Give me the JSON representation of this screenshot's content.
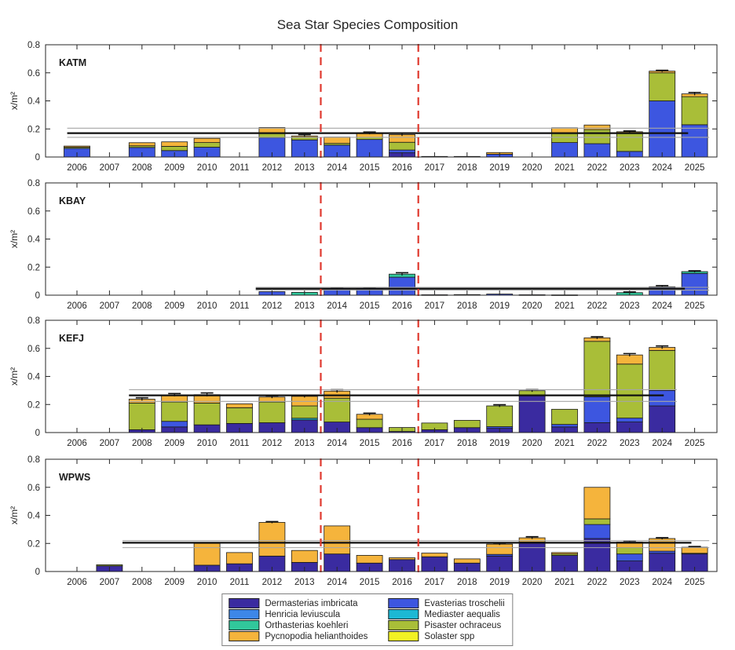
{
  "title": "Sea Star Species Composition",
  "ylabel": "x/m²",
  "chart_data": {
    "type": "bar",
    "stacked": true,
    "title": "Sea Star Species Composition",
    "ylabel": "x/m²",
    "ylim": [
      0,
      0.8
    ],
    "yticks": [
      0,
      0.2,
      0.4,
      0.6,
      0.8
    ],
    "years": [
      2006,
      2007,
      2008,
      2009,
      2010,
      2011,
      2012,
      2013,
      2014,
      2015,
      2016,
      2017,
      2018,
      2019,
      2020,
      2021,
      2022,
      2023,
      2024,
      2025
    ],
    "event_lines_x": [
      2013.5,
      2016.5
    ],
    "event_line_color": "#e03a2f",
    "species": [
      "Dermasterias imbricata",
      "Evasterias troschelii",
      "Henricia leviuscula",
      "Mediaster aequalis",
      "Orthasterias koehleri",
      "Pisaster ochraceus",
      "Pycnopodia helianthoides",
      "Solaster spp"
    ],
    "colors": [
      "#3a2ba0",
      "#3d56e0",
      "#3d87e8",
      "#1cb8d4",
      "#31c79b",
      "#a9be38",
      "#f5b43c",
      "#f2f224"
    ],
    "mean_line_color": "#111111",
    "ci_line_color": "#a6a6a6",
    "panels": [
      {
        "site": "KATM",
        "ref": {
          "mean": 0.17,
          "upper": 0.205,
          "lower": 0.14,
          "x0": 2005.7,
          "x1_black": 2024.8,
          "x1_gray": 2025.45
        },
        "bars": {
          "2006": [
            0,
            0.062,
            0,
            0,
            0,
            0.008,
            0.008,
            0
          ],
          "2008": [
            0,
            0.068,
            0,
            0,
            0,
            0.012,
            0.022,
            0
          ],
          "2009": [
            0,
            0.046,
            0,
            0,
            0,
            0.03,
            0.032,
            0
          ],
          "2010": [
            0,
            0.07,
            0,
            0,
            0,
            0.033,
            0.03,
            0
          ],
          "2012": [
            0,
            0.138,
            0,
            0,
            0,
            0.036,
            0.036,
            0
          ],
          "2013": [
            0,
            0.122,
            0,
            0,
            0,
            0.02,
            0.008,
            0
          ],
          "2014": [
            0,
            0.085,
            0,
            0,
            0,
            0.012,
            0.045,
            0
          ],
          "2015": [
            0,
            0.125,
            0,
            0,
            0,
            0.015,
            0.03,
            0
          ],
          "2016": [
            0.03,
            0.02,
            0,
            0,
            0,
            0.055,
            0.055,
            0
          ],
          "2017": [
            0.004,
            0,
            0,
            0,
            0,
            0,
            0,
            0
          ],
          "2018": [
            0.004,
            0,
            0,
            0,
            0,
            0,
            0,
            0
          ],
          "2019": [
            0,
            0.02,
            0,
            0,
            0,
            0,
            0.012,
            0
          ],
          "2021": [
            0,
            0.103,
            0,
            0,
            0,
            0.065,
            0.04,
            0
          ],
          "2022": [
            0,
            0.095,
            0,
            0,
            0,
            0.1,
            0.033,
            0
          ],
          "2023": [
            0,
            0.04,
            0,
            0,
            0,
            0.13,
            0.01,
            0
          ],
          "2024": [
            0,
            0.4,
            0,
            0,
            0,
            0.2,
            0.012,
            0
          ],
          "2025": [
            0,
            0.23,
            0,
            0,
            0,
            0.2,
            0.02,
            0
          ]
        },
        "errs": {
          "2013": 0.01,
          "2015": 0.008,
          "2016": 0.01,
          "2023": 0.006,
          "2024": 0.006,
          "2025": 0.01
        }
      },
      {
        "site": "KBAY",
        "ref": {
          "mean": 0.046,
          "upper": 0.056,
          "lower": 0.036,
          "x0": 2011.5,
          "x1_black": 2024.7,
          "x1_gray": 2025.45
        },
        "bars": {
          "2012": [
            0,
            0.025,
            0,
            0,
            0,
            0,
            0,
            0
          ],
          "2013": [
            0,
            0,
            0,
            0,
            0.02,
            0,
            0,
            0
          ],
          "2014": [
            0,
            0.045,
            0,
            0,
            0,
            0,
            0,
            0
          ],
          "2015": [
            0,
            0.045,
            0,
            0,
            0,
            0,
            0,
            0
          ],
          "2016": [
            0,
            0.128,
            0,
            0,
            0.022,
            0,
            0,
            0
          ],
          "2017": [
            0.003,
            0,
            0,
            0,
            0,
            0,
            0,
            0
          ],
          "2018": [
            0.004,
            0,
            0,
            0,
            0,
            0,
            0,
            0
          ],
          "2019": [
            0,
            0.008,
            0,
            0,
            0,
            0,
            0,
            0
          ],
          "2020": [
            0.003,
            0,
            0,
            0,
            0,
            0,
            0,
            0
          ],
          "2021": [
            0.002,
            0,
            0,
            0,
            0,
            0,
            0,
            0
          ],
          "2023": [
            0,
            0,
            0,
            0,
            0.018,
            0,
            0,
            0
          ],
          "2024": [
            0,
            0.06,
            0,
            0,
            0,
            0,
            0,
            0
          ],
          "2025": [
            0,
            0.155,
            0,
            0,
            0.013,
            0,
            0,
            0
          ]
        },
        "errs": {
          "2014": 0.008,
          "2015": 0.008,
          "2016": 0.01,
          "2023": 0.005,
          "2024": 0.008,
          "2025": 0.006
        }
      },
      {
        "site": "KEFJ",
        "ref": {
          "mean": 0.265,
          "upper": 0.305,
          "lower": 0.222,
          "x0": 2007.6,
          "x1_black": 2024.05,
          "x1_gray": 2024.45
        },
        "bars": {
          "2008": [
            0.02,
            0,
            0,
            0,
            0,
            0.19,
            0.028,
            0
          ],
          "2009": [
            0.04,
            0.04,
            0,
            0,
            0,
            0.138,
            0.05,
            0
          ],
          "2010": [
            0.055,
            0,
            0,
            0,
            0,
            0.155,
            0.06,
            0
          ],
          "2011": [
            0.065,
            0,
            0,
            0,
            0,
            0.112,
            0.028,
            0
          ],
          "2012": [
            0.07,
            0,
            0,
            0,
            0,
            0.148,
            0.035,
            0
          ],
          "2013": [
            0.09,
            0,
            0,
            0.012,
            0,
            0.088,
            0.068,
            0
          ],
          "2014": [
            0.075,
            0,
            0,
            0,
            0,
            0.17,
            0.05,
            0
          ],
          "2015": [
            0.035,
            0,
            0,
            0,
            0,
            0.06,
            0.035,
            0
          ],
          "2016": [
            0.008,
            0,
            0,
            0,
            0,
            0.028,
            0,
            0
          ],
          "2017": [
            0.02,
            0,
            0,
            0,
            0,
            0.048,
            0,
            0
          ],
          "2018": [
            0.035,
            0,
            0,
            0,
            0,
            0.052,
            0,
            0
          ],
          "2019": [
            0.03,
            0.012,
            0,
            0,
            0,
            0.148,
            0,
            0
          ],
          "2020": [
            0.265,
            0,
            0,
            0,
            0,
            0.033,
            0,
            0
          ],
          "2021": [
            0.04,
            0.018,
            0,
            0,
            0,
            0.108,
            0,
            0
          ],
          "2022": [
            0.07,
            0.185,
            0,
            0,
            0,
            0.395,
            0.025,
            0
          ],
          "2023": [
            0.075,
            0.028,
            0,
            0,
            0,
            0.385,
            0.065,
            0
          ],
          "2024": [
            0.19,
            0.11,
            0,
            0,
            0,
            0.285,
            0.022,
            0
          ]
        },
        "errs": {
          "2008": 0.01,
          "2009": 0.01,
          "2010": 0.012,
          "2012": 0.008,
          "2013": 0.008,
          "2014": 0.01,
          "2015": 0.008,
          "2019": 0.008,
          "2020": 0.008,
          "2022": 0.008,
          "2023": 0.01,
          "2024": 0.01
        }
      },
      {
        "site": "WPWS",
        "ref": {
          "mean": 0.205,
          "upper": 0.22,
          "lower": 0.17,
          "x0": 2007.4,
          "x1_black": 2024.9,
          "x1_gray": 2025.45
        },
        "bars": {
          "2007": [
            0.04,
            0,
            0,
            0,
            0,
            0.008,
            0,
            0
          ],
          "2010": [
            0.045,
            0,
            0,
            0,
            0,
            0,
            0.155,
            0
          ],
          "2011": [
            0.055,
            0,
            0,
            0,
            0,
            0,
            0.08,
            0
          ],
          "2012": [
            0.11,
            0,
            0,
            0,
            0,
            0,
            0.24,
            0
          ],
          "2013": [
            0.065,
            0,
            0,
            0,
            0,
            0,
            0.085,
            0
          ],
          "2014": [
            0.125,
            0,
            0,
            0,
            0,
            0,
            0.2,
            0
          ],
          "2015": [
            0.06,
            0,
            0,
            0,
            0,
            0,
            0.055,
            0
          ],
          "2016": [
            0.085,
            0,
            0,
            0,
            0,
            0,
            0.013,
            0
          ],
          "2017": [
            0.105,
            0,
            0,
            0,
            0,
            0,
            0.026,
            0
          ],
          "2018": [
            0.06,
            0,
            0,
            0,
            0,
            0,
            0.03,
            0
          ],
          "2019": [
            0.11,
            0.012,
            0,
            0,
            0,
            0,
            0.073,
            0
          ],
          "2020": [
            0.21,
            0,
            0,
            0,
            0,
            0,
            0.03,
            0
          ],
          "2021": [
            0.115,
            0,
            0,
            0,
            0,
            0.01,
            0.01,
            0
          ],
          "2022": [
            0.235,
            0.1,
            0,
            0,
            0,
            0.04,
            0.225,
            0
          ],
          "2023": [
            0.075,
            0.05,
            0,
            0,
            0,
            0.045,
            0.04,
            0
          ],
          "2024": [
            0.13,
            0.015,
            0,
            0,
            0,
            0,
            0.09,
            0
          ],
          "2025": [
            0.125,
            0.005,
            0,
            0,
            0,
            0,
            0.043,
            0
          ]
        },
        "errs": {
          "2012": 0.006,
          "2019": 0.006,
          "2020": 0.008,
          "2023": 0.008,
          "2024": 0.006,
          "2025": 0.005
        }
      }
    ]
  }
}
